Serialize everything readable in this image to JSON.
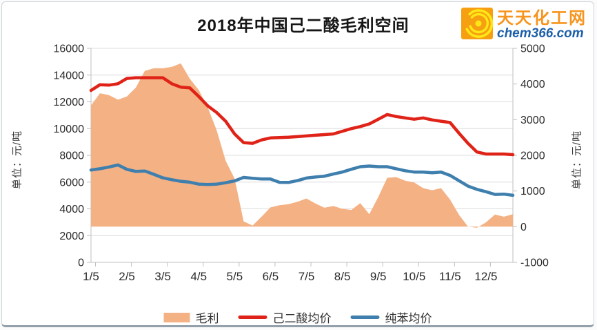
{
  "logo": {
    "name": "天天化工网",
    "domain": "chem366.com"
  },
  "chart_data": {
    "type": "combo-area-line",
    "title": "2018年中国己二酸毛利空间",
    "x_tick_labels": [
      "1/5",
      "2/5",
      "3/5",
      "4/5",
      "5/5",
      "6/5",
      "7/5",
      "8/5",
      "9/5",
      "10/5",
      "11/5",
      "12/5"
    ],
    "points_per_tick": 4,
    "grid": true,
    "legend_position": "bottom",
    "axis_left": {
      "label": "单位：元/吨",
      "min": 0,
      "max": 16000,
      "step": 2000
    },
    "axis_right": {
      "label": "单位：元/吨",
      "min": -1000,
      "max": 5000,
      "step": 1000
    },
    "series": [
      {
        "name": "毛利",
        "type": "area",
        "axis": "right",
        "color": "#f4b183",
        "values": [
          3400,
          3740,
          3690,
          3560,
          3650,
          3900,
          4370,
          4440,
          4440,
          4480,
          4580,
          4150,
          3830,
          3350,
          2700,
          1850,
          1350,
          150,
          30,
          280,
          540,
          600,
          630,
          700,
          790,
          650,
          530,
          580,
          500,
          470,
          660,
          350,
          830,
          1370,
          1390,
          1290,
          1240,
          1080,
          1020,
          1080,
          760,
          330,
          0,
          -30,
          120,
          340,
          280,
          350
        ]
      },
      {
        "name": "己二酸均价",
        "type": "line",
        "axis": "left",
        "color": "#e02318",
        "values": [
          12850,
          13280,
          13250,
          13350,
          13750,
          13800,
          13800,
          13800,
          13800,
          13350,
          13100,
          13050,
          12400,
          11700,
          11200,
          10550,
          9600,
          8950,
          8900,
          9150,
          9300,
          9330,
          9360,
          9400,
          9450,
          9500,
          9550,
          9600,
          9800,
          10000,
          10150,
          10350,
          10700,
          11050,
          10900,
          10800,
          10700,
          10800,
          10650,
          10550,
          10450,
          9650,
          8900,
          8250,
          8100,
          8100,
          8100,
          8050
        ]
      },
      {
        "name": "纯苯均价",
        "type": "line",
        "axis": "left",
        "color": "#3f7fae",
        "values": [
          6900,
          7000,
          7130,
          7280,
          6950,
          6800,
          6830,
          6580,
          6320,
          6180,
          6060,
          5990,
          5850,
          5820,
          5850,
          5950,
          6090,
          6350,
          6280,
          6230,
          6230,
          5980,
          5970,
          6110,
          6300,
          6380,
          6440,
          6600,
          6750,
          6960,
          7150,
          7200,
          7150,
          7150,
          7000,
          6850,
          6750,
          6745,
          6700,
          6745,
          6500,
          6100,
          5700,
          5455,
          5280,
          5080,
          5100,
          5010
        ]
      }
    ],
    "style": {
      "gridline_color": "#dcdcdc",
      "axis_color": "#bfbfbf",
      "tick_text_color": "#2b2b2b"
    }
  }
}
